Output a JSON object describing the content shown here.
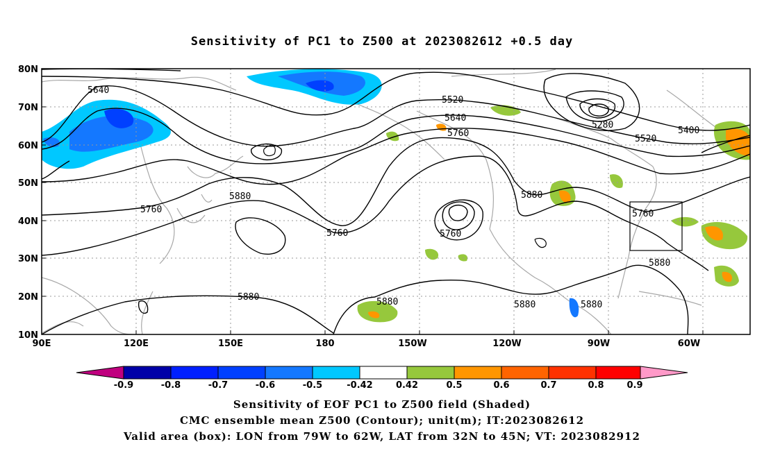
{
  "title": "Sensitivity of PC1 to Z500 at 2023082612 +0.5 day",
  "lat_labels": [
    "80N",
    "70N",
    "60N",
    "50N",
    "40N",
    "30N",
    "20N",
    "10N"
  ],
  "lon_labels": [
    "90E",
    "120E",
    "150E",
    "180",
    "150W",
    "120W",
    "90W",
    "60W"
  ],
  "contour_labels": [
    {
      "text": "5640"
    },
    {
      "text": "5520"
    },
    {
      "text": "5640"
    },
    {
      "text": "5760"
    },
    {
      "text": "5280"
    },
    {
      "text": "5400"
    },
    {
      "text": "5520"
    },
    {
      "text": "5760"
    },
    {
      "text": "5880"
    },
    {
      "text": "5760"
    },
    {
      "text": "5880"
    },
    {
      "text": "5760"
    },
    {
      "text": "5760"
    },
    {
      "text": "5880"
    },
    {
      "text": "5880"
    },
    {
      "text": "5880"
    },
    {
      "text": "5880"
    },
    {
      "text": "5880"
    }
  ],
  "colorbar": {
    "labels": [
      "-0.9",
      "-0.8",
      "-0.7",
      "-0.6",
      "-0.5",
      "-0.42",
      "0.42",
      "0.5",
      "0.6",
      "0.7",
      "0.8",
      "0.9"
    ],
    "colors": [
      "#c0007f",
      "#0000a8",
      "#0020ff",
      "#0040ff",
      "#1478ff",
      "#00c8ff",
      "#ffffff",
      "#96c83c",
      "#ff9600",
      "#ff6400",
      "#ff3200",
      "#ff0000",
      "#ff99c8"
    ]
  },
  "captions": {
    "line1": "Sensitivity of EOF PC1 to Z500 field (Shaded)",
    "line2": "CMC ensemble mean Z500 (Contour); unit(m); IT:2023082612",
    "line3": "Valid area (box): LON from 79W to 62W, LAT from 32N to 45N; VT: 2023082912"
  }
}
